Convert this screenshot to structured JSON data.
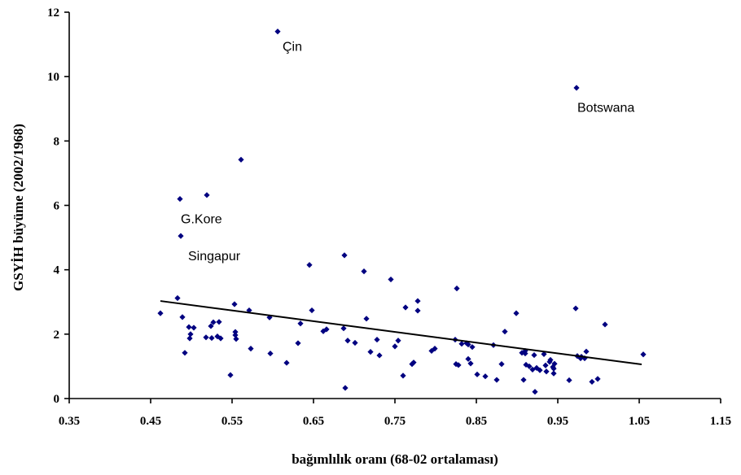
{
  "chart_data": {
    "type": "scatter",
    "xlabel": "bağımlılık oranı (68-02 ortalaması)",
    "ylabel": "GSYİH büyüme (2002/1968)",
    "xlim": [
      0.35,
      1.15
    ],
    "ylim": [
      0,
      12
    ],
    "x_ticks": [
      "0.35",
      "0.45",
      "0.55",
      "0.65",
      "0.75",
      "0.85",
      "0.95",
      "1.05",
      "1.15"
    ],
    "y_ticks": [
      "0",
      "2",
      "4",
      "6",
      "8",
      "10",
      "12"
    ],
    "marker_color": "#000080",
    "series": [
      {
        "points": [
          [
            0.606,
            11.4
          ],
          [
            0.973,
            9.65
          ],
          [
            0.561,
            7.42
          ],
          [
            0.519,
            6.32
          ],
          [
            0.486,
            6.2
          ],
          [
            0.487,
            5.05
          ],
          [
            0.688,
            4.45
          ],
          [
            0.645,
            4.15
          ],
          [
            0.712,
            3.95
          ],
          [
            0.745,
            3.7
          ],
          [
            0.826,
            3.42
          ],
          [
            0.483,
            3.12
          ],
          [
            0.778,
            3.03
          ],
          [
            0.553,
            2.93
          ],
          [
            0.763,
            2.83
          ],
          [
            0.972,
            2.8
          ],
          [
            0.571,
            2.74
          ],
          [
            0.648,
            2.74
          ],
          [
            0.778,
            2.73
          ],
          [
            0.899,
            2.65
          ],
          [
            0.462,
            2.65
          ],
          [
            0.489,
            2.53
          ],
          [
            0.596,
            2.52
          ],
          [
            0.715,
            2.48
          ],
          [
            0.534,
            2.38
          ],
          [
            0.527,
            2.37
          ],
          [
            0.634,
            2.33
          ],
          [
            1.008,
            2.3
          ],
          [
            0.524,
            2.25
          ],
          [
            0.497,
            2.22
          ],
          [
            0.503,
            2.2
          ],
          [
            0.687,
            2.18
          ],
          [
            0.666,
            2.15
          ],
          [
            0.662,
            2.09
          ],
          [
            0.885,
            2.08
          ],
          [
            0.554,
            2.07
          ],
          [
            0.499,
            2.0
          ],
          [
            0.554,
            1.97
          ],
          [
            0.532,
            1.93
          ],
          [
            0.518,
            1.9
          ],
          [
            0.525,
            1.88
          ],
          [
            0.498,
            1.87
          ],
          [
            0.536,
            1.87
          ],
          [
            0.555,
            1.85
          ],
          [
            0.728,
            1.83
          ],
          [
            0.824,
            1.83
          ],
          [
            0.692,
            1.8
          ],
          [
            0.754,
            1.8
          ],
          [
            0.631,
            1.72
          ],
          [
            0.701,
            1.73
          ],
          [
            0.838,
            1.72
          ],
          [
            0.832,
            1.7
          ],
          [
            0.84,
            1.68
          ],
          [
            0.871,
            1.66
          ],
          [
            0.75,
            1.62
          ],
          [
            0.845,
            1.6
          ],
          [
            0.799,
            1.55
          ],
          [
            0.573,
            1.55
          ],
          [
            0.72,
            1.45
          ],
          [
            0.795,
            1.48
          ],
          [
            0.91,
            1.48
          ],
          [
            0.985,
            1.46
          ],
          [
            0.492,
            1.42
          ],
          [
            0.906,
            1.42
          ],
          [
            0.597,
            1.4
          ],
          [
            0.91,
            1.4
          ],
          [
            0.933,
            1.38
          ],
          [
            1.055,
            1.37
          ],
          [
            0.921,
            1.35
          ],
          [
            0.731,
            1.34
          ],
          [
            0.974,
            1.32
          ],
          [
            0.979,
            1.3
          ],
          [
            0.978,
            1.25
          ],
          [
            0.983,
            1.25
          ],
          [
            0.84,
            1.23
          ],
          [
            0.941,
            1.2
          ],
          [
            0.94,
            1.14
          ],
          [
            0.773,
            1.12
          ],
          [
            0.617,
            1.11
          ],
          [
            0.843,
            1.09
          ],
          [
            0.946,
            1.08
          ],
          [
            0.771,
            1.07
          ],
          [
            0.825,
            1.07
          ],
          [
            0.881,
            1.07
          ],
          [
            0.911,
            1.05
          ],
          [
            0.828,
            1.04
          ],
          [
            0.935,
            1.03
          ],
          [
            0.915,
            1.0
          ],
          [
            0.944,
            0.98
          ],
          [
            0.924,
            0.95
          ],
          [
            0.945,
            0.93
          ],
          [
            0.919,
            0.9
          ],
          [
            0.928,
            0.88
          ],
          [
            0.936,
            0.84
          ],
          [
            0.945,
            0.78
          ],
          [
            0.851,
            0.75
          ],
          [
            0.548,
            0.73
          ],
          [
            0.76,
            0.71
          ],
          [
            0.861,
            0.69
          ],
          [
            0.999,
            0.61
          ],
          [
            0.908,
            0.58
          ],
          [
            0.875,
            0.58
          ],
          [
            0.964,
            0.57
          ],
          [
            0.992,
            0.52
          ],
          [
            0.689,
            0.33
          ],
          [
            0.922,
            0.21
          ]
        ]
      }
    ],
    "trendline": {
      "x": [
        0.462,
        1.053
      ],
      "y": [
        3.03,
        1.06
      ]
    },
    "annotations": [
      {
        "text": "Çin",
        "x": 0.612,
        "y": 10.8
      },
      {
        "text": "Botswana",
        "x": 0.974,
        "y": 8.9
      },
      {
        "text": "G.Kore",
        "x": 0.487,
        "y": 5.45
      },
      {
        "text": "Singapur",
        "x": 0.496,
        "y": 4.3
      }
    ]
  }
}
